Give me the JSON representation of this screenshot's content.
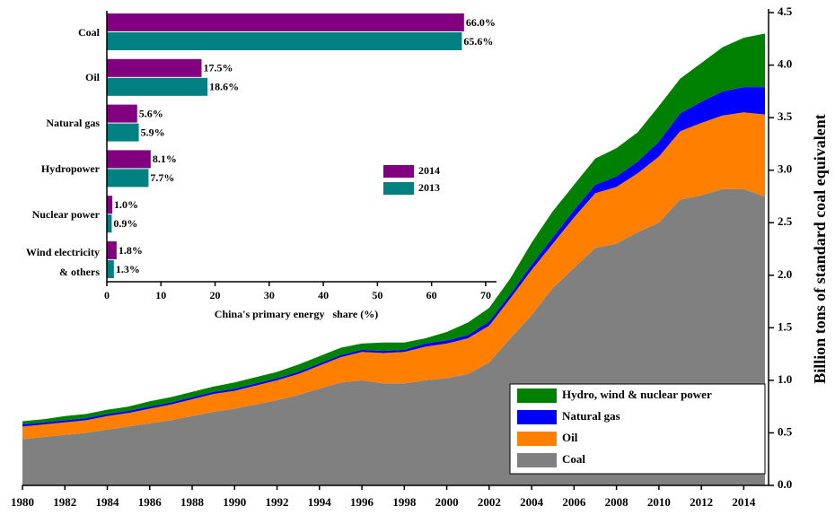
{
  "chart_data": [
    {
      "type": "area",
      "stacked": true,
      "x": [
        1980,
        1981,
        1982,
        1983,
        1984,
        1985,
        1986,
        1987,
        1988,
        1989,
        1990,
        1991,
        1992,
        1993,
        1994,
        1995,
        1996,
        1997,
        1998,
        1999,
        2000,
        2001,
        2002,
        2003,
        2004,
        2005,
        2006,
        2007,
        2008,
        2009,
        2010,
        2011,
        2012,
        2013,
        2014,
        2015
      ],
      "series": [
        {
          "name": "Coal",
          "color": "#808080",
          "values": [
            0.44,
            0.46,
            0.48,
            0.5,
            0.53,
            0.56,
            0.59,
            0.62,
            0.66,
            0.7,
            0.73,
            0.77,
            0.81,
            0.86,
            0.92,
            0.98,
            1.0,
            0.97,
            0.97,
            1.0,
            1.02,
            1.06,
            1.17,
            1.4,
            1.62,
            1.88,
            2.07,
            2.26,
            2.3,
            2.41,
            2.5,
            2.72,
            2.76,
            2.82,
            2.82,
            2.75
          ]
        },
        {
          "name": "Oil",
          "color": "#ff8000",
          "values": [
            0.12,
            0.12,
            0.12,
            0.12,
            0.13,
            0.13,
            0.14,
            0.15,
            0.16,
            0.17,
            0.17,
            0.18,
            0.19,
            0.2,
            0.22,
            0.24,
            0.27,
            0.29,
            0.3,
            0.32,
            0.33,
            0.34,
            0.35,
            0.38,
            0.43,
            0.42,
            0.48,
            0.52,
            0.54,
            0.56,
            0.63,
            0.65,
            0.69,
            0.7,
            0.73,
            0.78
          ]
        },
        {
          "name": "Natural gas",
          "color": "#0000ff",
          "values": [
            0.02,
            0.02,
            0.02,
            0.02,
            0.02,
            0.02,
            0.02,
            0.02,
            0.02,
            0.02,
            0.02,
            0.02,
            0.02,
            0.02,
            0.02,
            0.02,
            0.02,
            0.02,
            0.02,
            0.03,
            0.03,
            0.03,
            0.04,
            0.04,
            0.05,
            0.06,
            0.07,
            0.08,
            0.1,
            0.11,
            0.14,
            0.17,
            0.2,
            0.23,
            0.24,
            0.26
          ]
        },
        {
          "name": "Hydro, wind & nuclear power",
          "color": "#008000",
          "values": [
            0.03,
            0.03,
            0.04,
            0.04,
            0.04,
            0.04,
            0.05,
            0.05,
            0.05,
            0.05,
            0.06,
            0.06,
            0.06,
            0.07,
            0.07,
            0.07,
            0.06,
            0.08,
            0.07,
            0.05,
            0.08,
            0.12,
            0.13,
            0.15,
            0.21,
            0.25,
            0.24,
            0.25,
            0.27,
            0.28,
            0.34,
            0.33,
            0.37,
            0.42,
            0.47,
            0.51
          ]
        }
      ],
      "xlim": [
        1980,
        2015
      ],
      "xticks": [
        1980,
        1982,
        1984,
        1986,
        1988,
        1990,
        1992,
        1994,
        1996,
        1998,
        2000,
        2002,
        2004,
        2006,
        2008,
        2010,
        2012,
        2014
      ],
      "ylim": [
        0,
        4.5
      ],
      "yticks": [
        {
          "value": 0,
          "label": "0.0"
        },
        0.5,
        {
          "value": 1,
          "label": "1.0"
        },
        1.5,
        {
          "value": 2,
          "label": "2.0"
        },
        2.5,
        {
          "value": 3,
          "label": "3.0"
        },
        3.5,
        {
          "value": 4,
          "label": "4.0"
        },
        4.5
      ],
      "y_label": "Billion tons of standard coal equivalent",
      "y_axis_side": "right",
      "legend": "lower right"
    },
    {
      "type": "hbar",
      "categories": [
        "Coal",
        "Oil",
        "Natural gas",
        "Hydropower",
        "Nuclear power",
        "Wind electricity\n& others"
      ],
      "series": [
        {
          "name": "2014",
          "color": "#800080",
          "values": [
            66.0,
            17.5,
            5.6,
            8.1,
            1.0,
            1.8
          ],
          "value_labels": [
            "66.0%",
            "17.5%",
            "5.6%",
            "8.1%",
            "1.0%",
            "1.8%"
          ]
        },
        {
          "name": "2013",
          "color": "#008080",
          "values": [
            65.6,
            18.6,
            5.9,
            7.7,
            0.9,
            1.3
          ],
          "value_labels": [
            "65.6%",
            "18.6%",
            "5.9%",
            "7.7%",
            "0.9%",
            "1.3%"
          ]
        }
      ],
      "xlim": [
        0,
        72
      ],
      "xticks": [
        0,
        10,
        20,
        30,
        40,
        50,
        60,
        70
      ],
      "x_label": "China's primary energy   share (%)"
    }
  ]
}
